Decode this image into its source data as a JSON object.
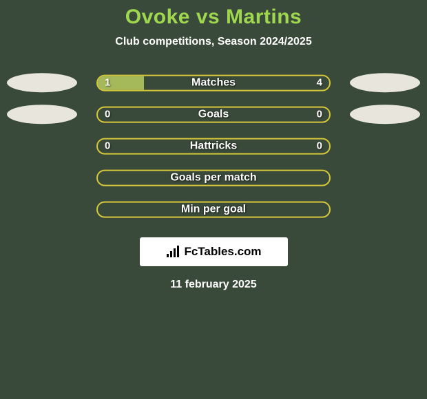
{
  "background_color": "#3a4a3a",
  "accent_color": "#9fd84f",
  "bar_border_color": "#d6c83a",
  "bar_fill_color": "#a5b85a",
  "ellipse_color": "#e8e6dc",
  "text_color": "#ffffff",
  "title": "Ovoke vs Martins",
  "subtitle": "Club competitions, Season 2024/2025",
  "rows": [
    {
      "label": "Matches",
      "left": "1",
      "right": "4",
      "fill_left_pct": 20,
      "fill_right_pct": 0,
      "show_values": true,
      "show_ellipses": true
    },
    {
      "label": "Goals",
      "left": "0",
      "right": "0",
      "fill_left_pct": 0,
      "fill_right_pct": 0,
      "show_values": true,
      "show_ellipses": true
    },
    {
      "label": "Hattricks",
      "left": "0",
      "right": "0",
      "fill_left_pct": 0,
      "fill_right_pct": 0,
      "show_values": true,
      "show_ellipses": false
    },
    {
      "label": "Goals per match",
      "left": "",
      "right": "",
      "fill_left_pct": 0,
      "fill_right_pct": 0,
      "show_values": false,
      "show_ellipses": false
    },
    {
      "label": "Min per goal",
      "left": "",
      "right": "",
      "fill_left_pct": 0,
      "fill_right_pct": 0,
      "show_values": false,
      "show_ellipses": false
    }
  ],
  "attribution": "FcTables.com",
  "date": "11 february 2025"
}
